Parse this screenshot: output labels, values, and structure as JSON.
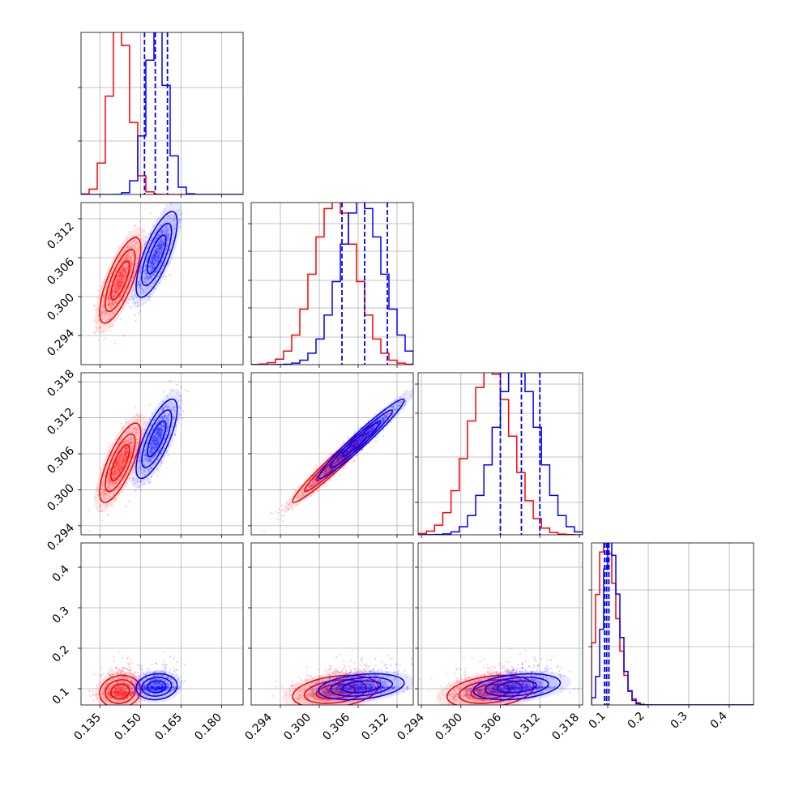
{
  "chart_data": {
    "type": "corner",
    "title": "",
    "parameters": [
      {
        "label": "",
        "range": [
          0.128,
          0.188
        ],
        "ticks": [
          "0.135",
          "0.150",
          "0.165",
          "0.180"
        ]
      },
      {
        "label": "",
        "range": [
          0.2895,
          0.3145
        ],
        "ticks": [
          "0.294",
          "0.300",
          "0.306",
          "0.312"
        ]
      },
      {
        "label": "",
        "range": [
          0.2935,
          0.3185
        ],
        "ticks": [
          "0.294",
          "0.300",
          "0.306",
          "0.312",
          "0.318"
        ]
      },
      {
        "label": "",
        "range": [
          0.06,
          0.46
        ],
        "ticks": [
          "0.1",
          "0.2",
          "0.3",
          "0.4"
        ]
      }
    ],
    "y_ticks_row2": [
      "0.294",
      "0.300",
      "0.306",
      "0.312"
    ],
    "y_ticks_row3": [
      "0.294",
      "0.300",
      "0.306",
      "0.312",
      "0.318"
    ],
    "y_ticks_row4": [
      "0.1",
      "0.2",
      "0.3",
      "0.4"
    ],
    "series": [
      {
        "color": "#ff0000",
        "mean": [
          0.1425,
          0.3025,
          0.3045,
          0.093
        ],
        "sd": [
          0.0038,
          0.0033,
          0.0033,
          0.02
        ]
      },
      {
        "color": "#0000ff",
        "mean": [
          0.156,
          0.3065,
          0.3085,
          0.105
        ],
        "sd": [
          0.0038,
          0.0033,
          0.0033,
          0.016
        ]
      }
    ],
    "quantile_lines": {
      "color": "#0000ff",
      "style": "dashed",
      "param1": [
        0.1515,
        0.1555,
        0.16
      ],
      "param2": [
        0.3035,
        0.307,
        0.3105
      ],
      "param3": [
        0.306,
        0.3092,
        0.312
      ],
      "param4": [
        0.092,
        0.097,
        0.103
      ]
    },
    "grid": true,
    "legend": "none"
  }
}
